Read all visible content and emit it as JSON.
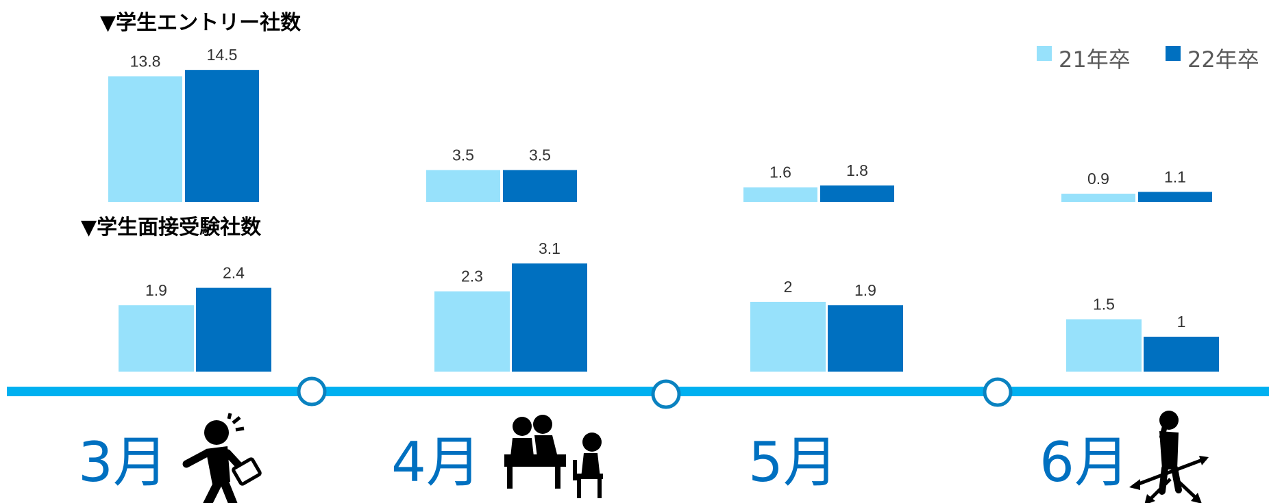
{
  "headings": {
    "entry": "▼学生エントリー社数",
    "interview": "▼学生面接受験社数"
  },
  "legend": [
    "21年卒",
    "22年卒"
  ],
  "colors": {
    "s21": "#97e1fb",
    "s22": "#0070c0",
    "timeline": "#00b0f0",
    "month": "#0070c0"
  },
  "timeline": {
    "months": [
      "3月",
      "4月",
      "5月",
      "6月"
    ],
    "icons": [
      "running-businessperson-icon",
      "interview-meeting-icon",
      "",
      "confused-person-at-crossroads-icon"
    ]
  },
  "chart_data": [
    {
      "type": "bar",
      "title": "▼学生エントリー社数",
      "categories": [
        "3月",
        "4月",
        "5月",
        "6月"
      ],
      "series": [
        {
          "name": "21年卒",
          "values": [
            13.8,
            3.5,
            1.6,
            0.9
          ]
        },
        {
          "name": "22年卒",
          "values": [
            14.5,
            3.5,
            1.8,
            1.1
          ]
        }
      ],
      "value_labels": [
        [
          "13.8",
          "3.5",
          "1.6",
          "0.9"
        ],
        [
          "14.5",
          "3.5",
          "1.8",
          "1.1"
        ]
      ],
      "ylim": [
        0,
        15
      ],
      "legend": "top-right",
      "grid": false
    },
    {
      "type": "bar",
      "title": "▼学生面接受験社数",
      "categories": [
        "3月",
        "4月",
        "5月",
        "6月"
      ],
      "series": [
        {
          "name": "21年卒",
          "values": [
            1.9,
            2.3,
            2,
            1.5
          ]
        },
        {
          "name": "22年卒",
          "values": [
            2.4,
            3.1,
            1.9,
            1
          ]
        }
      ],
      "value_labels": [
        [
          "1.9",
          "2.3",
          "2",
          "1.5"
        ],
        [
          "2.4",
          "3.1",
          "1.9",
          "1"
        ]
      ],
      "ylim": [
        0,
        3.5
      ],
      "grid": false
    }
  ]
}
